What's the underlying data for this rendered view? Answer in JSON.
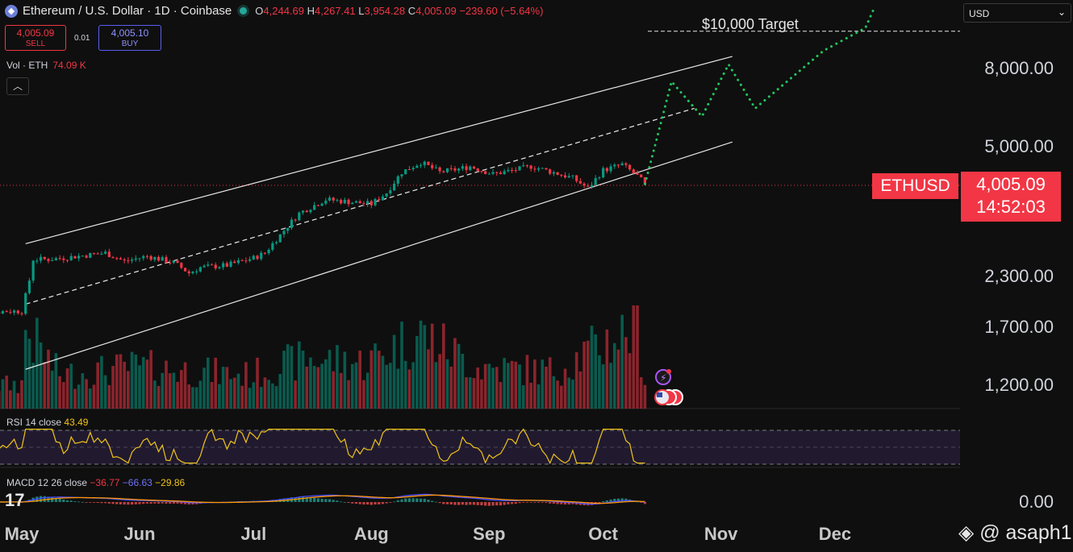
{
  "header": {
    "symbol_title": "Ethereum / U.S. Dollar · 1D · Coinbase",
    "open_label": "O",
    "open": "4,244.69",
    "high_label": "H",
    "high": "4,267.41",
    "low_label": "L",
    "low": "3,954.28",
    "close_label": "C",
    "close": "4,005.09",
    "change": "−239.60 (−5.64%)"
  },
  "trade": {
    "sell_price": "4,005.09",
    "sell_label": "SELL",
    "spread": "0.01",
    "buy_price": "4,005.10",
    "buy_label": "BUY"
  },
  "volume": {
    "label": "Vol · ETH",
    "value": "74.09 K"
  },
  "currency_select": {
    "value": "USD"
  },
  "price_tag": {
    "symbol": "ETHUSD",
    "price": "4,005.09",
    "countdown": "14:52:03"
  },
  "annotation": {
    "target": "$10,000 Target"
  },
  "rsi": {
    "label": "RSI 14 close",
    "value": "43.49"
  },
  "macd": {
    "label": "MACD 12 26 close",
    "macd": "−36.77",
    "signal": "−66.63",
    "hist": "−29.86"
  },
  "watermark": "@ asaph1",
  "colors": {
    "up": "#089981",
    "down": "#f23645",
    "forecast": "#22c55e",
    "rsi": "#f0c419",
    "macd": "#4b4fff"
  },
  "chart_data": {
    "type": "candlestick",
    "scale": "log",
    "y_ticks": [
      "8,000.00",
      "5,000.00",
      "2,300.00",
      "1,700.00",
      "1,200.00"
    ],
    "y_tick_values": [
      8000,
      5000,
      2300,
      1700,
      1200
    ],
    "rsi_tick": "",
    "macd_tick": "0.00",
    "x_ticks": [
      "May",
      "Jun",
      "Jul",
      "Aug",
      "Sep",
      "Oct",
      "Nov",
      "Dec"
    ],
    "x_tick_days": [
      0,
      31,
      61,
      92,
      123,
      153,
      184,
      214
    ],
    "price_path": [
      [
        -14,
        1840
      ],
      [
        -4,
        1870
      ],
      [
        0,
        1870
      ],
      [
        1,
        2050
      ],
      [
        2,
        2250
      ],
      [
        3,
        2550
      ],
      [
        7,
        2550
      ],
      [
        12,
        2580
      ],
      [
        22,
        2650
      ],
      [
        27,
        2520
      ],
      [
        33,
        2600
      ],
      [
        40,
        2500
      ],
      [
        44,
        2350
      ],
      [
        47,
        2430
      ],
      [
        54,
        2460
      ],
      [
        61,
        2570
      ],
      [
        64,
        2650
      ],
      [
        68,
        2950
      ],
      [
        73,
        3360
      ],
      [
        80,
        3650
      ],
      [
        92,
        3550
      ],
      [
        96,
        3800
      ],
      [
        100,
        4300
      ],
      [
        105,
        4560
      ],
      [
        110,
        4300
      ],
      [
        115,
        4380
      ],
      [
        118,
        4450
      ],
      [
        124,
        4250
      ],
      [
        130,
        4360
      ],
      [
        134,
        4450
      ],
      [
        136,
        4400
      ],
      [
        145,
        4150
      ],
      [
        149,
        3900
      ],
      [
        153,
        4350
      ],
      [
        158,
        4500
      ],
      [
        162,
        4200
      ],
      [
        164,
        4005
      ]
    ],
    "volume_path": [
      [
        -14,
        0.25
      ],
      [
        0,
        0.3
      ],
      [
        1,
        0.95
      ],
      [
        10,
        0.4
      ],
      [
        30,
        0.5
      ],
      [
        60,
        0.4
      ],
      [
        75,
        0.6
      ],
      [
        90,
        0.55
      ],
      [
        105,
        0.9
      ],
      [
        120,
        0.5
      ],
      [
        140,
        0.45
      ],
      [
        162,
        1.0
      ],
      [
        164,
        0.35
      ]
    ],
    "channel": {
      "upper": [
        [
          1,
          2800
        ],
        [
          187,
          8600
        ]
      ],
      "mid": [
        [
          1,
          1950
        ],
        [
          177,
          6300
        ]
      ],
      "lower": [
        [
          1,
          1320
        ],
        [
          187,
          5150
        ]
      ]
    },
    "forecast_path": [
      [
        164,
        4005
      ],
      [
        167,
        5200
      ],
      [
        171,
        7400
      ],
      [
        179,
        6000
      ],
      [
        186,
        8200
      ],
      [
        193,
        6300
      ],
      [
        211,
        8900
      ],
      [
        222,
        10200
      ],
      [
        224,
        11300
      ]
    ],
    "target_level": 10000
  }
}
